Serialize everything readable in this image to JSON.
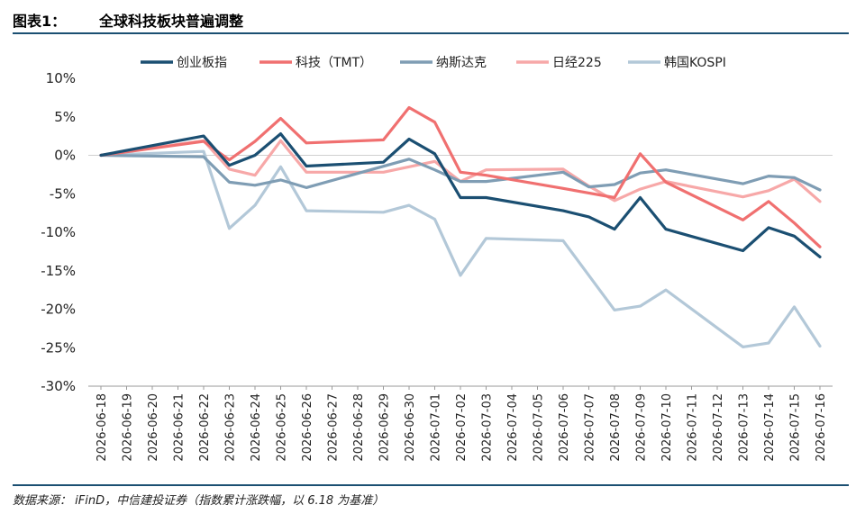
{
  "header": {
    "label": "图表1：",
    "title": "全球科技板块普遍调整"
  },
  "source": "数据来源： iFinD，中信建投证券（指数累计涨跌幅，以 6.18 为基准）",
  "chart_data": {
    "type": "line",
    "title": "全球科技板块普遍调整",
    "xlabel": "",
    "ylabel": "",
    "ylim": [
      -30,
      10
    ],
    "yticks": [
      10,
      5,
      0,
      -5,
      -10,
      -15,
      -20,
      -25,
      -30
    ],
    "ytick_suffix": "%",
    "grid": false,
    "legend": "top",
    "categories": [
      "2026-06-18",
      "2026-06-19",
      "2026-06-20",
      "2026-06-21",
      "2026-06-22",
      "2026-06-23",
      "2026-06-24",
      "2026-06-25",
      "2026-06-26",
      "2026-06-27",
      "2026-06-28",
      "2026-06-29",
      "2026-06-30",
      "2026-07-01",
      "2026-07-02",
      "2026-07-03",
      "2026-07-04",
      "2026-07-05",
      "2026-07-06",
      "2026-07-07",
      "2026-07-08",
      "2026-07-09",
      "2026-07-10",
      "2026-07-11",
      "2026-07-12",
      "2026-07-13",
      "2026-07-14",
      "2026-07-15",
      "2026-07-16"
    ],
    "series": [
      {
        "name": "创业板指",
        "color": "#1b4f72",
        "width": 3.2,
        "points": [
          [
            0,
            0.0
          ],
          [
            4,
            2.5
          ],
          [
            5,
            -1.3
          ],
          [
            6,
            0.0
          ],
          [
            7,
            2.8
          ],
          [
            8,
            -1.4
          ],
          [
            11,
            -0.9
          ],
          [
            12,
            2.1
          ],
          [
            13,
            0.2
          ],
          [
            14,
            -5.5
          ],
          [
            15,
            -5.5
          ],
          [
            18,
            -7.2
          ],
          [
            19,
            -8.0
          ],
          [
            20,
            -9.6
          ],
          [
            21,
            -5.5
          ],
          [
            22,
            -9.6
          ],
          [
            25,
            -12.4
          ],
          [
            26,
            -9.4
          ],
          [
            27,
            -10.5
          ],
          [
            28,
            -13.2
          ]
        ]
      },
      {
        "name": "科技（TMT）",
        "color": "#f07070",
        "width": 3.2,
        "points": [
          [
            0,
            0.0
          ],
          [
            4,
            1.8
          ],
          [
            5,
            -0.6
          ],
          [
            6,
            1.8
          ],
          [
            7,
            4.8
          ],
          [
            8,
            1.6
          ],
          [
            11,
            2.0
          ],
          [
            12,
            6.2
          ],
          [
            13,
            4.3
          ],
          [
            14,
            -2.2
          ],
          [
            15,
            -2.6
          ],
          [
            18,
            -4.3
          ],
          [
            19,
            -4.9
          ],
          [
            20,
            -5.5
          ],
          [
            21,
            0.2
          ],
          [
            22,
            -3.5
          ],
          [
            25,
            -8.4
          ],
          [
            26,
            -6.0
          ],
          [
            27,
            -8.8
          ],
          [
            28,
            -11.9
          ]
        ]
      },
      {
        "name": "纳斯达克",
        "color": "#7f9db4",
        "width": 3.2,
        "points": [
          [
            0,
            0.0
          ],
          [
            4,
            -0.2
          ],
          [
            5,
            -3.5
          ],
          [
            6,
            -3.9
          ],
          [
            7,
            -3.2
          ],
          [
            8,
            -4.2
          ],
          [
            12,
            -0.5
          ],
          [
            13,
            -1.9
          ],
          [
            14,
            -3.4
          ],
          [
            15,
            -3.4
          ],
          [
            18,
            -2.2
          ],
          [
            19,
            -4.1
          ],
          [
            20,
            -3.8
          ],
          [
            21,
            -2.3
          ],
          [
            22,
            -1.9
          ],
          [
            25,
            -3.7
          ],
          [
            26,
            -2.7
          ],
          [
            27,
            -2.9
          ],
          [
            28,
            -4.5
          ]
        ]
      },
      {
        "name": "日经225",
        "color": "#f7a8a8",
        "width": 3.2,
        "points": [
          [
            0,
            0.0
          ],
          [
            4,
            1.9
          ],
          [
            5,
            -1.8
          ],
          [
            6,
            -2.6
          ],
          [
            7,
            1.9
          ],
          [
            8,
            -2.2
          ],
          [
            11,
            -2.2
          ],
          [
            13,
            -0.8
          ],
          [
            14,
            -3.4
          ],
          [
            15,
            -1.9
          ],
          [
            18,
            -1.8
          ],
          [
            19,
            -4.0
          ],
          [
            20,
            -5.9
          ],
          [
            21,
            -4.4
          ],
          [
            22,
            -3.4
          ],
          [
            25,
            -5.4
          ],
          [
            26,
            -4.6
          ],
          [
            27,
            -3.1
          ],
          [
            28,
            -6.0
          ]
        ]
      },
      {
        "name": "韩国KOSPI",
        "color": "#b3c8d8",
        "width": 3.2,
        "points": [
          [
            0,
            0.0
          ],
          [
            4,
            0.5
          ],
          [
            5,
            -9.5
          ],
          [
            6,
            -6.5
          ],
          [
            7,
            -1.5
          ],
          [
            8,
            -7.2
          ],
          [
            11,
            -7.4
          ],
          [
            12,
            -6.5
          ],
          [
            13,
            -8.3
          ],
          [
            14,
            -15.6
          ],
          [
            15,
            -10.8
          ],
          [
            18,
            -11.1
          ],
          [
            19,
            -15.6
          ],
          [
            20,
            -20.1
          ],
          [
            21,
            -19.6
          ],
          [
            22,
            -17.5
          ],
          [
            25,
            -24.9
          ],
          [
            26,
            -24.4
          ],
          [
            27,
            -19.7
          ],
          [
            28,
            -24.8
          ]
        ]
      }
    ]
  }
}
